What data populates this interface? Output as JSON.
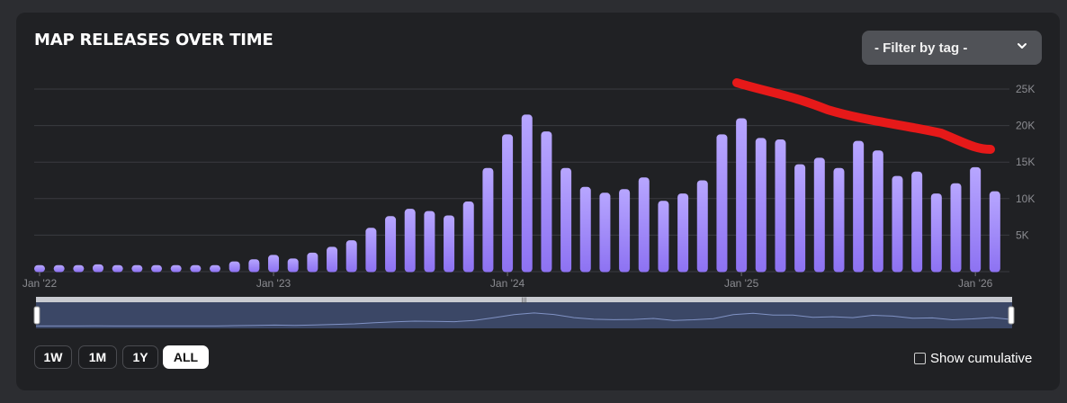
{
  "chart_data": {
    "type": "bar",
    "title": "MAP RELEASES OVER TIME",
    "xlabel": "",
    "ylabel": "",
    "ylim": [
      0,
      25000
    ],
    "y_ticks": [
      "25K",
      "20K",
      "15K",
      "10K",
      "5K"
    ],
    "y_tick_values": [
      25000,
      20000,
      15000,
      10000,
      5000
    ],
    "x_ticks": [
      "Jan '22",
      "Jan '23",
      "Jan '24",
      "Jan '25",
      "Jan '26"
    ],
    "x_tick_indices": [
      0,
      12,
      24,
      36,
      48
    ],
    "grid": true,
    "categories": [
      "2022-01",
      "2022-02",
      "2022-03",
      "2022-04",
      "2022-05",
      "2022-06",
      "2022-07",
      "2022-08",
      "2022-09",
      "2022-10",
      "2022-11",
      "2022-12",
      "2023-01",
      "2023-02",
      "2023-03",
      "2023-04",
      "2023-05",
      "2023-06",
      "2023-07",
      "2023-08",
      "2023-09",
      "2023-10",
      "2023-11",
      "2023-12",
      "2024-01",
      "2024-02",
      "2024-03",
      "2024-04",
      "2024-05",
      "2024-06",
      "2024-07",
      "2024-08",
      "2024-09",
      "2024-10",
      "2024-11",
      "2024-12",
      "2025-01",
      "2025-02",
      "2025-03",
      "2025-04",
      "2025-05",
      "2025-06",
      "2025-07",
      "2025-08",
      "2025-09",
      "2025-10",
      "2025-11",
      "2025-12",
      "2026-01",
      "2026-02"
    ],
    "values": [
      900,
      900,
      900,
      1000,
      900,
      900,
      900,
      900,
      900,
      900,
      1400,
      1700,
      2300,
      1800,
      2600,
      3400,
      4300,
      6000,
      7600,
      8600,
      8300,
      7700,
      9600,
      14200,
      18800,
      21500,
      19200,
      14200,
      11600,
      10800,
      11300,
      12900,
      9700,
      10700,
      12500,
      18800,
      21000,
      18300,
      18100,
      14700,
      15600,
      14200,
      17900,
      16600,
      13100,
      13700,
      10700,
      12100,
      14300,
      11000
    ],
    "annotations": []
  },
  "filter": {
    "label": "- Filter by tag -",
    "icon": "chevron-down-icon"
  },
  "range_buttons": [
    "1W",
    "1M",
    "1Y",
    "ALL"
  ],
  "active_range": "ALL",
  "cumulative": {
    "label": "Show cumulative",
    "checked": false
  },
  "colors": {
    "bar_top": "#b7a6ff",
    "bar_bottom": "#8d72f2",
    "annotation": "#e61919",
    "navigator_fill": "#3b4766"
  }
}
